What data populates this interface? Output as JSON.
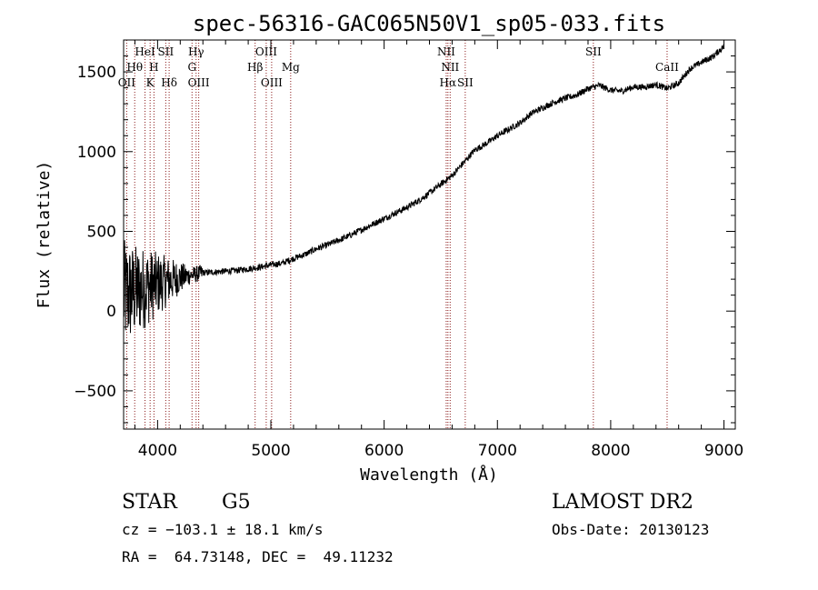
{
  "chart_data": {
    "type": "line",
    "title": "spec-56316-GAC065N50V1_sp05-033.fits",
    "xlabel": "Wavelength (Å)",
    "ylabel": "Flux (relative)",
    "xlim": [
      3700,
      9100
    ],
    "ylim": [
      -740,
      1700
    ],
    "x_ticks": [
      4000,
      5000,
      6000,
      7000,
      8000,
      9000
    ],
    "x_tick_labels": [
      "4000",
      "5000",
      "6000",
      "7000",
      "8000",
      "9000"
    ],
    "y_ticks": [
      -500,
      0,
      500,
      1000,
      1500
    ],
    "y_tick_labels": [
      "−500",
      "0",
      "500",
      "1000",
      "1500"
    ],
    "series": [
      {
        "line_color": "#000000",
        "x": [
          3700,
          3800,
          3900,
          4000,
          4100,
          4200,
          4300,
          4400,
          4500,
          4600,
          4700,
          4800,
          4900,
          5000,
          5100,
          5200,
          5300,
          5400,
          5500,
          5600,
          5700,
          5800,
          5900,
          6000,
          6100,
          6200,
          6300,
          6400,
          6500,
          6600,
          6700,
          6800,
          6900,
          7000,
          7100,
          7200,
          7300,
          7400,
          7500,
          7600,
          7700,
          7800,
          7900,
          8000,
          8100,
          8200,
          8300,
          8400,
          8500,
          8600,
          8700,
          8800,
          8900,
          9000
        ],
        "y": [
          100,
          120,
          150,
          170,
          190,
          210,
          225,
          240,
          245,
          250,
          255,
          265,
          275,
          290,
          300,
          330,
          355,
          390,
          415,
          445,
          475,
          510,
          545,
          580,
          615,
          650,
          690,
          740,
          795,
          850,
          930,
          1010,
          1050,
          1100,
          1140,
          1180,
          1240,
          1275,
          1310,
          1335,
          1355,
          1395,
          1415,
          1385,
          1380,
          1405,
          1405,
          1420,
          1395,
          1430,
          1520,
          1560,
          1595,
          1660
        ]
      }
    ],
    "line_markers_color": "#8b1a1a",
    "line_markers": [
      {
        "x": 3727,
        "label": "OII",
        "row": 3
      },
      {
        "x": 3798,
        "label": "Hθ",
        "row": 2
      },
      {
        "x": 3889,
        "label": "HeI",
        "row": 1
      },
      {
        "x": 3934,
        "label": "K",
        "row": 3
      },
      {
        "x": 3968,
        "label": "H",
        "row": 2
      },
      {
        "x": 4072,
        "label": "SII",
        "row": 1
      },
      {
        "x": 4102,
        "label": "Hδ",
        "row": 3
      },
      {
        "x": 4304,
        "label": "G",
        "row": 2
      },
      {
        "x": 4340,
        "label": "Hγ",
        "row": 1
      },
      {
        "x": 4363,
        "label": "OIII",
        "row": 3
      },
      {
        "x": 4861,
        "label": "Hβ",
        "row": 2
      },
      {
        "x": 4959,
        "label": "OIII",
        "row": 1
      },
      {
        "x": 5007,
        "label": "OIII",
        "row": 3
      },
      {
        "x": 5175,
        "label": "Mg",
        "row": 2
      },
      {
        "x": 6548,
        "label": "NII",
        "row": 1
      },
      {
        "x": 6563,
        "label": "Hα",
        "row": 3
      },
      {
        "x": 6583,
        "label": "NII",
        "row": 2
      },
      {
        "x": 6716,
        "label": "SII",
        "row": 3
      },
      {
        "x": 7847,
        "label": "SII",
        "row": 1
      },
      {
        "x": 8498,
        "label": "CaII",
        "row": 2
      }
    ]
  },
  "info": {
    "object_class": "STAR",
    "subclass": "G5",
    "survey": "LAMOST DR2",
    "redshift": "cz = −103.1 ± 18.1 km/s",
    "obs_date": "Obs-Date: 20130123",
    "coords": "RA =  64.73148, DEC =  49.11232"
  }
}
